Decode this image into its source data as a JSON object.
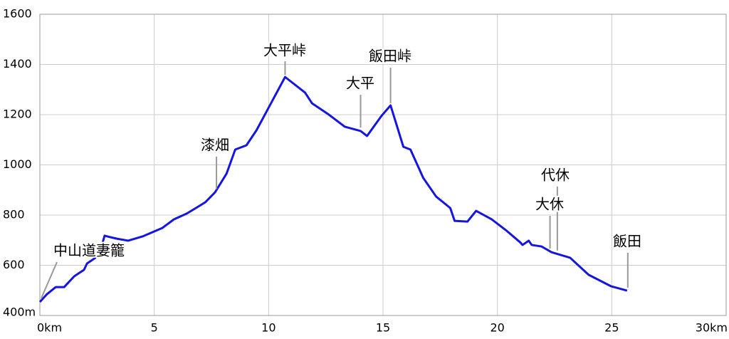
{
  "chart_data": {
    "type": "line",
    "x": [
      0,
      0.31,
      0.69,
      1.06,
      1.5,
      1.93,
      2.06,
      2.43,
      2.68,
      2.83,
      3.08,
      3.36,
      3.86,
      4.49,
      5.36,
      5.86,
      6.42,
      6.82,
      7.23,
      7.66,
      8.16,
      8.54,
      9.03,
      9.47,
      10.72,
      11.59,
      11.9,
      12.59,
      13.33,
      14.02,
      14.3,
      14.95,
      15.33,
      15.89,
      16.2,
      16.76,
      17.32,
      17.94,
      18.13,
      18.69,
      19.07,
      19.75,
      20.37,
      20.99,
      21.1,
      21.37,
      21.5,
      21.93,
      22.37,
      23.18,
      23.99,
      24.98,
      25.67
    ],
    "values": [
      454,
      485,
      513,
      513,
      556,
      582,
      607,
      630,
      670,
      718,
      712,
      706,
      698,
      715,
      749,
      783,
      806,
      828,
      851,
      891,
      965,
      1061,
      1078,
      1138,
      1350,
      1288,
      1245,
      1203,
      1152,
      1135,
      1115,
      1197,
      1237,
      1072,
      1061,
      948,
      874,
      828,
      777,
      774,
      817,
      783,
      740,
      692,
      681,
      698,
      681,
      675,
      652,
      630,
      562,
      516,
      499
    ],
    "color": "#1515e0",
    "xlim": [
      0,
      30
    ],
    "xticks": [
      {
        "value": 0,
        "label": "0km"
      },
      5,
      10,
      15,
      20,
      25,
      {
        "value": 30,
        "label": "30km"
      }
    ],
    "ylim": [
      400,
      1600
    ],
    "yticks": [
      {
        "value": 400,
        "label": "400m"
      },
      600,
      800,
      1000,
      1200,
      1400,
      1600
    ],
    "grid": true,
    "annotations": [
      {
        "text": "中山道妻籠",
        "x": 0.06,
        "y": 460
      },
      {
        "text": "漆畑",
        "x": 7.72,
        "y": 895
      },
      {
        "text": "大平峠",
        "x": 10.72,
        "y": 1350
      },
      {
        "text": "大平",
        "x": 14.02,
        "y": 1140
      },
      {
        "text": "飯田峠",
        "x": 15.33,
        "y": 1237
      },
      {
        "text": "代休",
        "x": 22.62,
        "y": 650
      },
      {
        "text": "大休",
        "x": 22.3,
        "y": 658
      },
      {
        "text": "飯田",
        "x": 25.7,
        "y": 502
      }
    ]
  }
}
